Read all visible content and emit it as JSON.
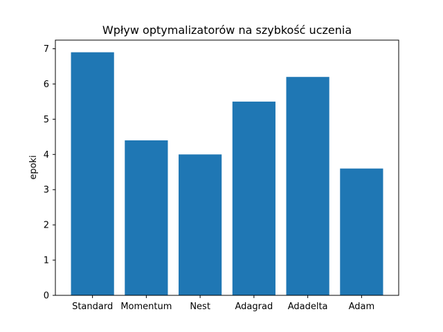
{
  "chart_data": {
    "type": "bar",
    "title": "Wpływ optymalizatorów na szybkość uczenia",
    "xlabel": "",
    "ylabel": "epoki",
    "categories": [
      "Standard",
      "Momentum",
      "Nest",
      "Adagrad",
      "Adadelta",
      "Adam"
    ],
    "values": [
      6.9,
      4.4,
      4.0,
      5.5,
      6.2,
      3.6
    ],
    "ylim": [
      0,
      7.245
    ],
    "yticks": [
      0,
      1,
      2,
      3,
      4,
      5,
      6,
      7
    ],
    "bar_color": "#1f77b4",
    "grid": false
  }
}
